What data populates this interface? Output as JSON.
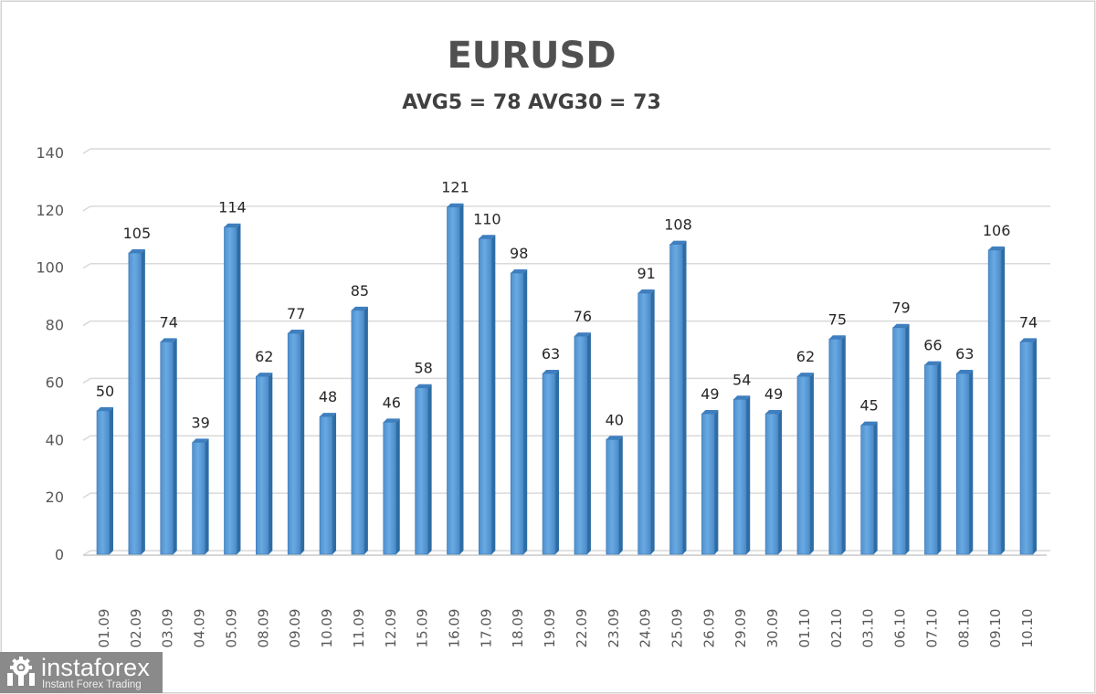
{
  "chart_data": {
    "type": "bar",
    "title": "EURUSD",
    "subtitle": "AVG5 = 78 AVG30 = 73",
    "xlabel": "",
    "ylabel": "",
    "ylim": [
      0,
      140
    ],
    "yticks": [
      0,
      20,
      40,
      60,
      80,
      100,
      120,
      140
    ],
    "grid": true,
    "legend": null,
    "data_labels": true,
    "bar_color": "#5b9bd5",
    "categories": [
      "01.09",
      "02.09",
      "03.09",
      "04.09",
      "05.09",
      "08.09",
      "09.09",
      "10.09",
      "11.09",
      "12.09",
      "15.09",
      "16.09",
      "17.09",
      "18.09",
      "19.09",
      "22.09",
      "23.09",
      "24.09",
      "25.09",
      "26.09",
      "29.09",
      "30.09",
      "01.10",
      "02.10",
      "03.10",
      "06.10",
      "07.10",
      "08.10",
      "09.10",
      "10.10"
    ],
    "values": [
      50,
      105,
      74,
      39,
      114,
      62,
      77,
      48,
      85,
      46,
      58,
      121,
      110,
      98,
      63,
      76,
      40,
      91,
      108,
      49,
      54,
      49,
      62,
      75,
      45,
      79,
      66,
      63,
      106,
      74
    ],
    "series": [
      {
        "name": "EURUSD",
        "values": [
          50,
          105,
          74,
          39,
          114,
          62,
          77,
          48,
          85,
          46,
          58,
          121,
          110,
          98,
          63,
          76,
          40,
          91,
          108,
          49,
          54,
          49,
          62,
          75,
          45,
          79,
          66,
          63,
          106,
          74
        ]
      }
    ]
  },
  "header": {
    "title": "EURUSD",
    "subtitle": "AVG5 = 78 AVG30 = 73"
  },
  "watermark": {
    "brand": "instaforex",
    "tagline": "Instant Forex Trading",
    "icon": "gear-person-icon"
  },
  "colors": {
    "bar_front": "#5b9bd5",
    "bar_side": "#2e6da4",
    "grid": "#d9d9d9",
    "axis_text": "#595959",
    "label_text": "#262626"
  }
}
